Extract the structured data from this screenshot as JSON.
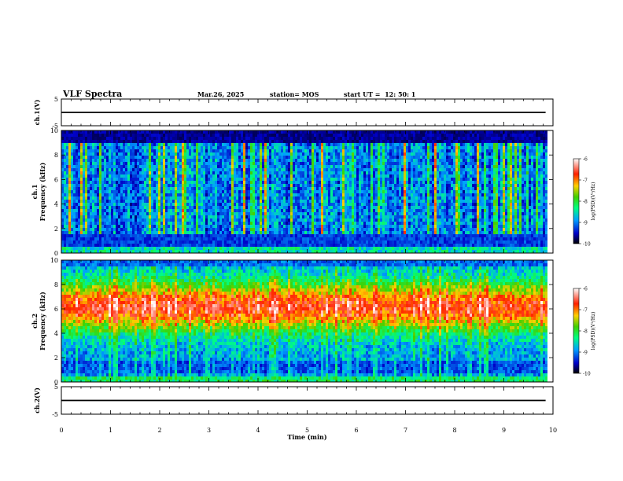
{
  "header": {
    "title": "VLF Spectra",
    "date": "Mar.26, 2025",
    "station": "station= MOS",
    "start": "start UT =  12: 50: 1"
  },
  "chart_data": [
    {
      "type": "line",
      "title": "",
      "ylabel": "ch.1(V)",
      "ylim": [
        -5,
        5
      ],
      "yticks": [
        "5",
        "-5"
      ],
      "xlim": [
        0,
        10
      ],
      "series": [
        {
          "x": [
            0,
            9.85
          ],
          "y": [
            0,
            0
          ]
        }
      ]
    },
    {
      "type": "heatmap",
      "ylabel_top": "ch.1",
      "ylabel": "Frequency (kHz)",
      "ylim": [
        0,
        10
      ],
      "yticks": [
        "0",
        "2",
        "4",
        "6",
        "8",
        "10"
      ],
      "xlim": [
        0,
        10
      ],
      "data_end_x": 9.85,
      "colorbar": {
        "label": "log(PSD)(V²/Hz)",
        "range": [
          -10,
          -6
        ],
        "ticks": [
          "-6",
          "-7",
          "-8",
          "-9",
          "-10"
        ]
      }
    },
    {
      "type": "heatmap",
      "ylabel_top": "ch.2",
      "ylabel": "Frequency (kHz)",
      "ylim": [
        0,
        10
      ],
      "yticks": [
        "0",
        "2",
        "4",
        "6",
        "8",
        "10"
      ],
      "xlim": [
        0,
        10
      ],
      "data_end_x": 9.85,
      "colorbar": {
        "label": "log(PSD)(V²/Hz)",
        "range": [
          -10,
          -6
        ],
        "ticks": [
          "-6",
          "-7",
          "-8",
          "-9",
          "-10"
        ]
      }
    },
    {
      "type": "line",
      "ylabel": "ch.2(V)",
      "ylim": [
        -5,
        5
      ],
      "yticks": [
        "5",
        "-5"
      ],
      "xlim": [
        0,
        10
      ],
      "series": [
        {
          "x": [
            0,
            9.85
          ],
          "y": [
            0,
            0
          ]
        }
      ]
    }
  ],
  "xaxis": {
    "label": "Time (min)",
    "ticks": [
      "0",
      "1",
      "2",
      "3",
      "4",
      "5",
      "6",
      "7",
      "8",
      "9",
      "10"
    ]
  }
}
